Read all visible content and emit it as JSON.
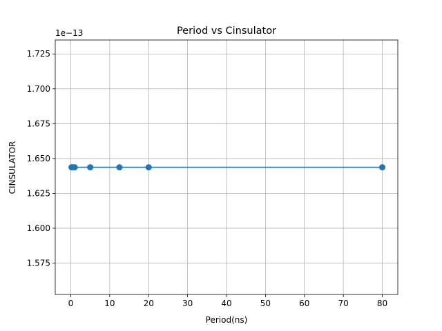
{
  "chart_data": {
    "type": "line",
    "title": "Period vs Cinsulator",
    "xlabel": "Period(ns)",
    "ylabel": "CINSULATOR",
    "offset_label": "1e−13",
    "x": [
      0.2,
      0.5,
      1.0,
      5.0,
      12.5,
      20.0,
      80.0
    ],
    "series": [
      {
        "values": [
          1.6437,
          1.6437,
          1.6437,
          1.6437,
          1.6437,
          1.6437,
          1.6437
        ]
      }
    ],
    "xlim": [
      -3.99,
      83.99
    ],
    "ylim": [
      1.5525,
      1.735
    ],
    "x_ticks": [
      0,
      10,
      20,
      30,
      40,
      50,
      60,
      70,
      80
    ],
    "x_tick_labels": [
      "0",
      "10",
      "20",
      "30",
      "40",
      "50",
      "60",
      "70",
      "80"
    ],
    "y_ticks": [
      1.575,
      1.6,
      1.625,
      1.65,
      1.675,
      1.7,
      1.725
    ],
    "y_tick_labels": [
      "1.575",
      "1.600",
      "1.625",
      "1.650",
      "1.675",
      "1.700",
      "1.725"
    ],
    "grid": true,
    "marker": "circle",
    "line_color": "#1f77b4"
  }
}
